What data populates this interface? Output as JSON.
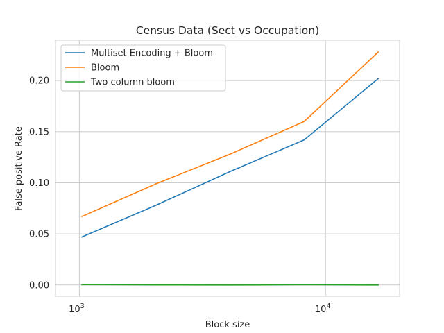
{
  "chart_data": {
    "type": "line",
    "title": "Census Data (Sect vs Occupation)",
    "xlabel": "Block size",
    "ylabel": "False positive Rate",
    "xscale": "log",
    "xlim": [
      800,
      20000
    ],
    "ylim": [
      -0.011,
      0.2395
    ],
    "grid": true,
    "legend_position": "upper-left",
    "x_ticks": [
      {
        "value": 1000,
        "base": "10",
        "exp": "3"
      },
      {
        "value": 10000,
        "base": "10",
        "exp": "4"
      }
    ],
    "y_ticks": [
      {
        "value": 0.0,
        "label": "0.00"
      },
      {
        "value": 0.05,
        "label": "0.05"
      },
      {
        "value": 0.1,
        "label": "0.10"
      },
      {
        "value": 0.15,
        "label": "0.15"
      },
      {
        "value": 0.2,
        "label": "0.20"
      }
    ],
    "x": [
      1024,
      2048,
      4096,
      8192,
      16384
    ],
    "series": [
      {
        "name": "Multiset Encoding + Bloom",
        "color": "#1f77b4",
        "values": [
          0.047,
          0.078,
          0.111,
          0.142,
          0.202
        ]
      },
      {
        "name": "Bloom",
        "color": "#ff7f0e",
        "values": [
          0.067,
          0.099,
          0.128,
          0.16,
          0.228
        ]
      },
      {
        "name": "Two column bloom",
        "color": "#2ca02c",
        "values": [
          0.0003,
          0.0001,
          0.0,
          0.0002,
          0.0
        ]
      }
    ]
  }
}
